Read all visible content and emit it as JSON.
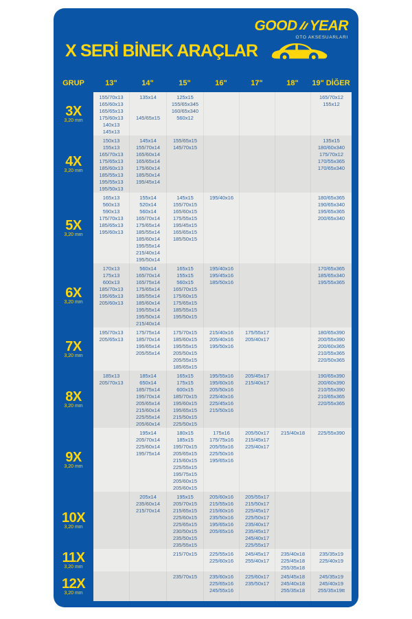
{
  "brand": {
    "good": "GOOD",
    "year": "YEAR",
    "subtitle": "OTO AKSESUARLARI"
  },
  "title": "X SERİ BİNEK ARAÇLAR",
  "icons": {
    "wingfoot": "goodyear-wingfoot",
    "car": "sedan-silhouette"
  },
  "colors": {
    "card_blue": "#0a55a5",
    "brand_yellow": "#ffd60b",
    "cell_text": "#31609c",
    "band_light": "#ecedea",
    "band_dark": "#e0e1de"
  },
  "columns": [
    "GRUP",
    "13\"",
    "14\"",
    "15\"",
    "16\"",
    "17\"",
    "18\"",
    "19\" DİĞER"
  ],
  "groups": [
    {
      "label": "3X",
      "sub": "3,20 mm",
      "cells": [
        [
          "155/70x13",
          "165/60x13",
          "165/65x13",
          "175/60x13",
          "140x13",
          "145x13"
        ],
        [
          "135x14",
          "",
          "",
          "145/65x15"
        ],
        [
          "125x15",
          "155/65x345",
          "160/65x340",
          "560x12"
        ],
        [],
        [],
        [],
        [
          "165/70x12",
          "155x12"
        ]
      ]
    },
    {
      "label": "4X",
      "sub": "3,20 mm",
      "cells": [
        [
          "150x13",
          "155x13",
          "165/70x13",
          "175/65x13",
          "185/60x13",
          "185/55x13",
          "195/55x13",
          "195/50x13"
        ],
        [
          "145x14",
          "155/70x14",
          "165/60x14",
          "165/65x14",
          "175/60x14",
          "185/50x14",
          "195/45x14"
        ],
        [
          "155/65x15",
          "145/70x15"
        ],
        [],
        [],
        [],
        [
          "135x15",
          "180/60x340",
          "175/70x12",
          "170/55x365",
          "170/65x340"
        ]
      ]
    },
    {
      "label": "5X",
      "sub": "3,20 mm",
      "cells": [
        [
          "165x13",
          "560x13",
          "590x13",
          "175/70x13",
          "185/65x13",
          "195/60x13"
        ],
        [
          "155x14",
          "520x14",
          "560x14",
          "165/70x14",
          "175/65x14",
          "185/55x14",
          "185/60x14",
          "195/55x14",
          "215/40x14",
          "195/50x14"
        ],
        [
          "145x15",
          "155/70x15",
          "165/60x15",
          "175/55x15",
          "195/45x15",
          "165/65x15",
          "185/50x15"
        ],
        [
          "195/40x16"
        ],
        [],
        [],
        [
          "180/65x365",
          "190/65x340",
          "195/65x365",
          "200/65x340"
        ]
      ]
    },
    {
      "label": "6X",
      "sub": "3,20 mm",
      "cells": [
        [
          "170x13",
          "175x13",
          "600x13",
          "185/70x13",
          "195/65x13",
          "205/60x13"
        ],
        [
          "560x14",
          "165/70x14",
          "165/75x14",
          "175/65x14",
          "185/55x14",
          "185/60x14",
          "195/55x14",
          "195/50x14",
          "215/40x14"
        ],
        [
          "165x15",
          "155x15",
          "560x15",
          "165/70x15",
          "175/60x15",
          "175/65x15",
          "185/55x15",
          "195/50x15"
        ],
        [
          "195/40x16",
          "195/45x16",
          "185/50x16"
        ],
        [],
        [],
        [
          "170/65x365",
          "185/65x340",
          "195/55x365"
        ]
      ]
    },
    {
      "label": "7X",
      "sub": "3,20 mm",
      "cells": [
        [
          "195/70x13",
          "205/65x13"
        ],
        [
          "175/75x14",
          "185/70x14",
          "195/65x14",
          "205/55x14"
        ],
        [
          "175/70x15",
          "185/60x15",
          "195/55x15",
          "205/50x15",
          "205/55x15",
          "185/65x15"
        ],
        [
          "215/40x16",
          "205/40x16",
          "195/50x16"
        ],
        [
          "175/55x17",
          "205/40x17"
        ],
        [],
        [
          "180/65x390",
          "200/55x390",
          "200/60x365",
          "210/55x365",
          "220/50x365"
        ]
      ]
    },
    {
      "label": "8X",
      "sub": "3,20 mm",
      "cells": [
        [
          "185x13",
          "205/70x13"
        ],
        [
          "185x14",
          "650x14",
          "185/75x14",
          "195/70x14",
          "205/65x14",
          "215/60x14",
          "225/55x14",
          "205/60x14"
        ],
        [
          "165x15",
          "175x15",
          "600x15",
          "185/70x15",
          "195/60x15",
          "195/65x15",
          "215/50x15",
          "225/50x15"
        ],
        [
          "195/55x16",
          "195/60x16",
          "205/50x16",
          "225/40x16",
          "225/45x16",
          "215/50x16"
        ],
        [
          "205/45x17",
          "215/40x17"
        ],
        [],
        [
          "190/65x390",
          "200/60x390",
          "210/55x390",
          "210/65x365",
          "220/55x365"
        ]
      ]
    },
    {
      "label": "9X",
      "sub": "3,20 mm",
      "cells": [
        [],
        [
          "195x14",
          "205/70x14",
          "225/60x14",
          "195/75x14"
        ],
        [
          "180x15",
          "185x15",
          "195/70x15",
          "205/65x15",
          "215/60x15",
          "225/55x15",
          "195/75x15",
          "205/60x15",
          "205/60x15"
        ],
        [
          "175x16",
          "175/75x16",
          "205/55x16",
          "225/50x16",
          "195/65x16"
        ],
        [
          "205/50x17",
          "215/45x17",
          "225/40x17"
        ],
        [
          "215/40x18"
        ],
        [
          "225/55x390"
        ]
      ]
    },
    {
      "label": "10X",
      "sub": "3,20 mm",
      "cells": [
        [],
        [
          "205x14",
          "235/60x14",
          "215/70x14"
        ],
        [
          "195x15",
          "205/70x15",
          "215/65x15",
          "225/60x15",
          "225/65x15",
          "230/50x15",
          "235/50x15",
          "235/55x15"
        ],
        [
          "205/60x16",
          "215/55x16",
          "215/60x16",
          "235/50x16",
          "195/65x16",
          "205/65x16"
        ],
        [
          "205/55x17",
          "215/50x17",
          "225/45x17",
          "225/50x17",
          "235/40x17",
          "235/45x17",
          "245/40x17",
          "225/55x17"
        ],
        [],
        []
      ]
    },
    {
      "label": "11X",
      "sub": "3,20 mm",
      "cells": [
        [],
        [],
        [
          "215/70x15"
        ],
        [
          "225/55x16",
          "225/60x16"
        ],
        [
          "245/45x17",
          "255/40x17"
        ],
        [
          "235/40x18",
          "225/45x18",
          "255/35x18"
        ],
        [
          "235/35x19",
          "225/40x19"
        ]
      ]
    },
    {
      "label": "12X",
      "sub": "3,20 mm",
      "cells": [
        [],
        [],
        [
          "235/70x15"
        ],
        [
          "235/60x16",
          "225/65x16",
          "245/55x16"
        ],
        [
          "225/60x17",
          "235/50x17"
        ],
        [
          "245/45x18",
          "245/40x18",
          "255/35x18"
        ],
        [
          "245/35x19",
          "245/40x19",
          "255/35x19tt"
        ]
      ]
    }
  ]
}
